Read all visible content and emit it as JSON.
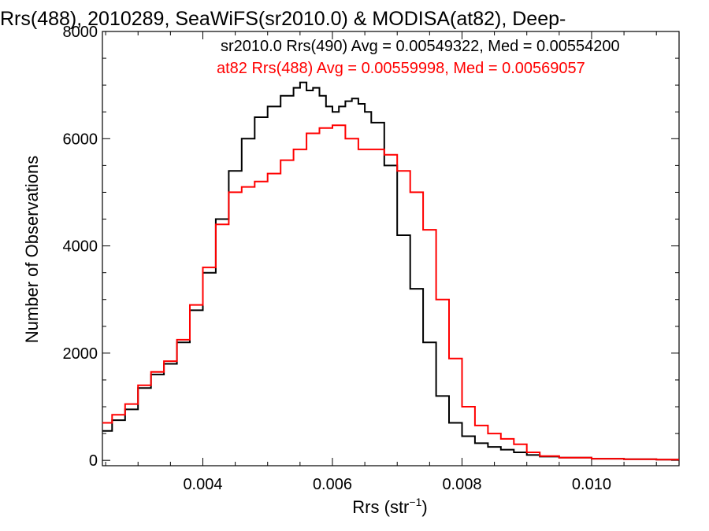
{
  "chart_data": {
    "type": "line",
    "title": "Rrs(488), 2010289, SeaWiFS(sr2010.0) & MODISA(at82), Deep-",
    "xlabel": "Rrs (str",
    "xlabel_exponent": "−1",
    "xlabel_close": ")",
    "ylabel": "Number of Observations",
    "xlim": [
      0.00245,
      0.01135
    ],
    "ylim": [
      -100,
      8000
    ],
    "xticks": [
      0.004,
      0.006,
      0.008,
      0.01
    ],
    "xtick_labels": [
      "0.004",
      "0.006",
      "0.008",
      "0.010"
    ],
    "yticks": [
      0,
      2000,
      4000,
      6000,
      8000
    ],
    "ytick_labels": [
      "0",
      "2000",
      "4000",
      "6000",
      "8000"
    ],
    "legend_position": "top-right",
    "series": [
      {
        "name": "sr2010.0 Rrs(490) Avg = 0.00549322, Med = 0.00554200",
        "color": "#000000",
        "x": [
          0.00245,
          0.0026,
          0.0028,
          0.003,
          0.0032,
          0.0034,
          0.0036,
          0.0038,
          0.004,
          0.0042,
          0.0044,
          0.0046,
          0.0048,
          0.005,
          0.0052,
          0.0054,
          0.0055,
          0.0056,
          0.0057,
          0.0058,
          0.0059,
          0.006,
          0.0061,
          0.0062,
          0.0063,
          0.0064,
          0.0065,
          0.0066,
          0.0068,
          0.007,
          0.0072,
          0.0074,
          0.0076,
          0.0078,
          0.008,
          0.0082,
          0.0084,
          0.0086,
          0.0088,
          0.009,
          0.0092,
          0.0095,
          0.01,
          0.0105,
          0.011,
          0.01135
        ],
        "y": [
          550,
          750,
          950,
          1350,
          1600,
          1800,
          2200,
          2800,
          3500,
          4500,
          5400,
          6000,
          6400,
          6600,
          6800,
          6950,
          7050,
          6900,
          6950,
          6800,
          6600,
          6500,
          6600,
          6700,
          6750,
          6650,
          6500,
          6300,
          5500,
          4200,
          3200,
          2200,
          1200,
          700,
          450,
          320,
          250,
          200,
          150,
          100,
          70,
          50,
          30,
          20,
          15,
          10
        ]
      },
      {
        "name": "at82 Rrs(488) Avg = 0.00559998, Med = 0.00569057",
        "color": "#ff0000",
        "x": [
          0.00245,
          0.0026,
          0.0028,
          0.003,
          0.0032,
          0.0034,
          0.0036,
          0.0038,
          0.004,
          0.0042,
          0.0044,
          0.0046,
          0.0048,
          0.005,
          0.0052,
          0.0054,
          0.0056,
          0.0058,
          0.006,
          0.0062,
          0.0064,
          0.0066,
          0.0068,
          0.007,
          0.0072,
          0.0074,
          0.0076,
          0.0078,
          0.008,
          0.0082,
          0.0084,
          0.0086,
          0.0088,
          0.009,
          0.0092,
          0.0095,
          0.01,
          0.0105,
          0.011,
          0.01135
        ],
        "y": [
          700,
          850,
          1050,
          1400,
          1650,
          1850,
          2250,
          2900,
          3600,
          4400,
          5000,
          5100,
          5200,
          5350,
          5600,
          5800,
          6100,
          6200,
          6250,
          6000,
          5800,
          5800,
          5700,
          5400,
          5000,
          4300,
          3000,
          1900,
          1000,
          650,
          500,
          400,
          300,
          150,
          80,
          50,
          30,
          20,
          15,
          10
        ]
      }
    ]
  }
}
